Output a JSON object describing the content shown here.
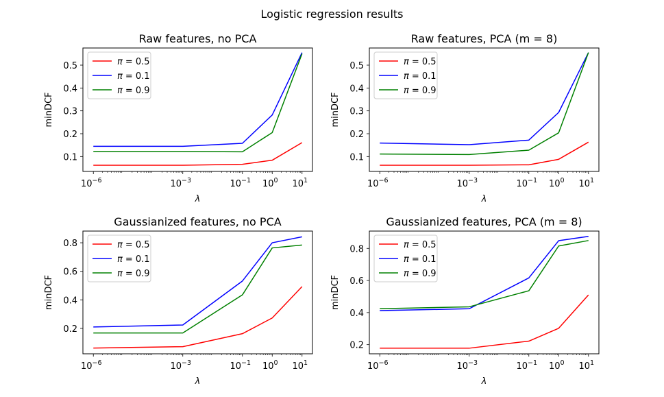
{
  "figure": {
    "suptitle": "Logistic regression results"
  },
  "chart_data": [
    {
      "type": "line",
      "title": "Raw features, no PCA",
      "xlabel": "λ",
      "ylabel": "minDCF",
      "x_scale": "log",
      "x": [
        1e-06,
        0.001,
        0.1,
        1,
        10
      ],
      "x_ticks": [
        {
          "base": "10",
          "exp": "−6"
        },
        {
          "base": "10",
          "exp": "−3"
        },
        {
          "base": "10",
          "exp": "−1"
        },
        {
          "base": "10",
          "exp": "0"
        },
        {
          "base": "10",
          "exp": "1"
        }
      ],
      "ylim": [
        0.035,
        0.575
      ],
      "y_ticks": [
        "0.1",
        "0.2",
        "0.3",
        "0.4",
        "0.5"
      ],
      "legend_position": "upper left",
      "series": [
        {
          "name": "π = 0.5",
          "legend_symbol": "π",
          "legend_value": "= 0.5",
          "color": "#ff0000",
          "values": [
            0.062,
            0.062,
            0.066,
            0.084,
            0.161
          ]
        },
        {
          "name": "π = 0.1",
          "legend_symbol": "π",
          "legend_value": "= 0.1",
          "color": "#0000ff",
          "values": [
            0.145,
            0.145,
            0.158,
            0.282,
            0.555
          ]
        },
        {
          "name": "π = 0.9",
          "legend_symbol": "π",
          "legend_value": "= 0.9",
          "color": "#008000",
          "values": [
            0.122,
            0.122,
            0.121,
            0.205,
            0.55
          ]
        }
      ]
    },
    {
      "type": "line",
      "title": "Raw features, PCA (m = 8)",
      "xlabel": "λ",
      "ylabel": "minDCF",
      "x_scale": "log",
      "x": [
        1e-06,
        0.001,
        0.1,
        1,
        10
      ],
      "x_ticks": [
        {
          "base": "10",
          "exp": "−6"
        },
        {
          "base": "10",
          "exp": "−3"
        },
        {
          "base": "10",
          "exp": "−1"
        },
        {
          "base": "10",
          "exp": "0"
        },
        {
          "base": "10",
          "exp": "1"
        }
      ],
      "ylim": [
        0.035,
        0.575
      ],
      "y_ticks": [
        "0.1",
        "0.2",
        "0.3",
        "0.4",
        "0.5"
      ],
      "legend_position": "upper left",
      "series": [
        {
          "name": "π = 0.5",
          "legend_symbol": "π",
          "legend_value": "= 0.5",
          "color": "#ff0000",
          "values": [
            0.062,
            0.062,
            0.064,
            0.088,
            0.163
          ]
        },
        {
          "name": "π = 0.1",
          "legend_symbol": "π",
          "legend_value": "= 0.1",
          "color": "#0000ff",
          "values": [
            0.159,
            0.152,
            0.172,
            0.293,
            0.555
          ]
        },
        {
          "name": "π = 0.9",
          "legend_symbol": "π",
          "legend_value": "= 0.9",
          "color": "#008000",
          "values": [
            0.111,
            0.109,
            0.128,
            0.204,
            0.555
          ]
        }
      ]
    },
    {
      "type": "line",
      "title": "Gaussianized features, no PCA",
      "xlabel": "λ",
      "ylabel": "minDCF",
      "x_scale": "log",
      "x": [
        1e-06,
        0.001,
        0.1,
        1,
        10
      ],
      "x_ticks": [
        {
          "base": "10",
          "exp": "−6"
        },
        {
          "base": "10",
          "exp": "−3"
        },
        {
          "base": "10",
          "exp": "−1"
        },
        {
          "base": "10",
          "exp": "0"
        },
        {
          "base": "10",
          "exp": "1"
        }
      ],
      "ylim": [
        0.022,
        0.882
      ],
      "y_ticks": [
        "0.2",
        "0.4",
        "0.6",
        "0.8"
      ],
      "legend_position": "upper left",
      "series": [
        {
          "name": "π = 0.5",
          "legend_symbol": "π",
          "legend_value": "= 0.5",
          "color": "#ff0000",
          "values": [
            0.062,
            0.072,
            0.163,
            0.273,
            0.493
          ]
        },
        {
          "name": "π = 0.1",
          "legend_symbol": "π",
          "legend_value": "= 0.1",
          "color": "#0000ff",
          "values": [
            0.21,
            0.224,
            0.532,
            0.8,
            0.842
          ]
        },
        {
          "name": "π = 0.9",
          "legend_symbol": "π",
          "legend_value": "= 0.9",
          "color": "#008000",
          "values": [
            0.168,
            0.168,
            0.435,
            0.764,
            0.784
          ]
        }
      ]
    },
    {
      "type": "line",
      "title": "Gaussianized features, PCA (m = 8)",
      "xlabel": "λ",
      "ylabel": "minDCF",
      "x_scale": "log",
      "x": [
        1e-06,
        0.001,
        0.1,
        1,
        10
      ],
      "x_ticks": [
        {
          "base": "10",
          "exp": "−6"
        },
        {
          "base": "10",
          "exp": "−3"
        },
        {
          "base": "10",
          "exp": "−1"
        },
        {
          "base": "10",
          "exp": "0"
        },
        {
          "base": "10",
          "exp": "1"
        }
      ],
      "ylim": [
        0.143,
        0.908
      ],
      "y_ticks": [
        "0.2",
        "0.4",
        "0.6",
        "0.8"
      ],
      "legend_position": "upper left",
      "series": [
        {
          "name": "π = 0.5",
          "legend_symbol": "π",
          "legend_value": "= 0.5",
          "color": "#ff0000",
          "values": [
            0.178,
            0.178,
            0.222,
            0.302,
            0.51
          ]
        },
        {
          "name": "π = 0.1",
          "legend_symbol": "π",
          "legend_value": "= 0.1",
          "color": "#0000ff",
          "values": [
            0.412,
            0.424,
            0.616,
            0.848,
            0.875
          ]
        },
        {
          "name": "π = 0.9",
          "legend_symbol": "π",
          "legend_value": "= 0.9",
          "color": "#008000",
          "values": [
            0.424,
            0.436,
            0.536,
            0.815,
            0.849
          ]
        }
      ]
    }
  ]
}
